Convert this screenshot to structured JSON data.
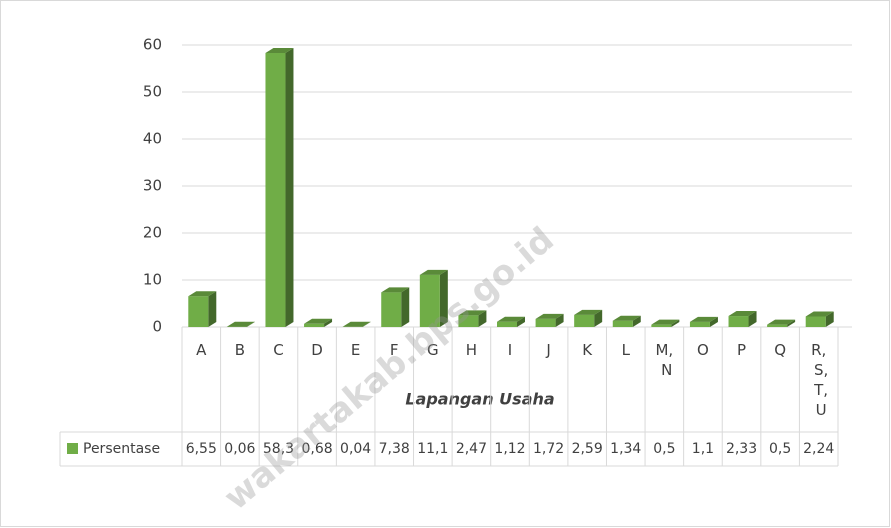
{
  "chart_data": {
    "type": "bar",
    "categories": [
      "A",
      "B",
      "C",
      "D",
      "E",
      "F",
      "G",
      "H",
      "I",
      "J",
      "K",
      "L",
      "M, N",
      "O",
      "P",
      "Q",
      "R, S, T, U"
    ],
    "series": [
      {
        "name": "Persentase",
        "color": "#70ad47",
        "values": [
          6.55,
          0.06,
          58.3,
          0.68,
          0.04,
          7.38,
          11.1,
          2.47,
          1.12,
          1.72,
          2.59,
          1.34,
          0.5,
          1.1,
          2.33,
          0.5,
          2.24
        ],
        "value_labels": [
          "6,55",
          "0,06",
          "58,3",
          "0,68",
          "0,04",
          "7,38",
          "11,1",
          "2,47",
          "1,12",
          "1,72",
          "2,59",
          "1,34",
          "0,5",
          "1,1",
          "2,33",
          "0,5",
          "2,24"
        ]
      }
    ],
    "x_label": "Lapangan Usaha",
    "ylim": [
      0,
      60
    ],
    "yticks": [
      0,
      10,
      20,
      30,
      40,
      50,
      60
    ],
    "grid": true,
    "watermark": "wakartakab.bps.go.id"
  }
}
